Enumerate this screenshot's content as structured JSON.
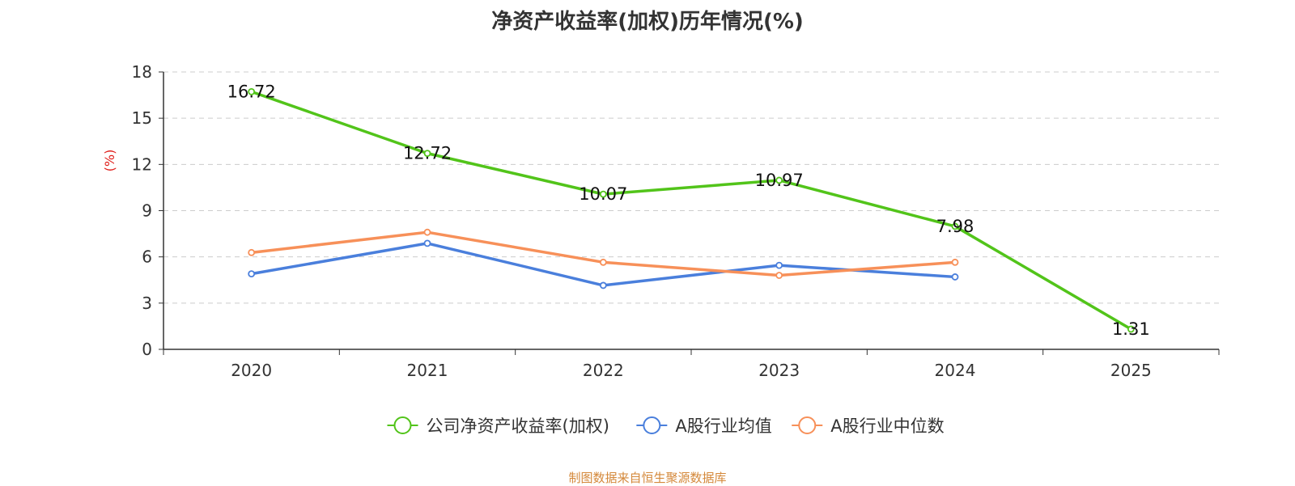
{
  "chart_data": {
    "type": "line",
    "title": "净资产收益率(加权)历年情况(%)",
    "ylabel": "(%)",
    "xlabel": "",
    "categories": [
      "2020",
      "2021",
      "2022",
      "2023",
      "2024",
      "2025"
    ],
    "ylim": [
      0,
      18
    ],
    "yticks": [
      0,
      3,
      6,
      9,
      12,
      15,
      18
    ],
    "grid": true,
    "legend_position": "bottom",
    "series": [
      {
        "name": "公司净资产收益率(加权)",
        "color": "#52c41a",
        "values": [
          16.72,
          12.72,
          10.07,
          10.97,
          7.98,
          1.31
        ],
        "labels": [
          "16.72",
          "12.72",
          "10.07",
          "10.97",
          "7.98",
          "1.31"
        ]
      },
      {
        "name": "A股行业均值",
        "color": "#4a7fdc",
        "values": [
          4.9,
          6.88,
          4.15,
          5.45,
          4.7,
          null
        ]
      },
      {
        "name": "A股行业中位数",
        "color": "#f79059",
        "values": [
          6.28,
          7.6,
          5.65,
          4.8,
          5.65,
          null
        ]
      }
    ]
  },
  "source_text": "制图数据来自恒生聚源数据库"
}
